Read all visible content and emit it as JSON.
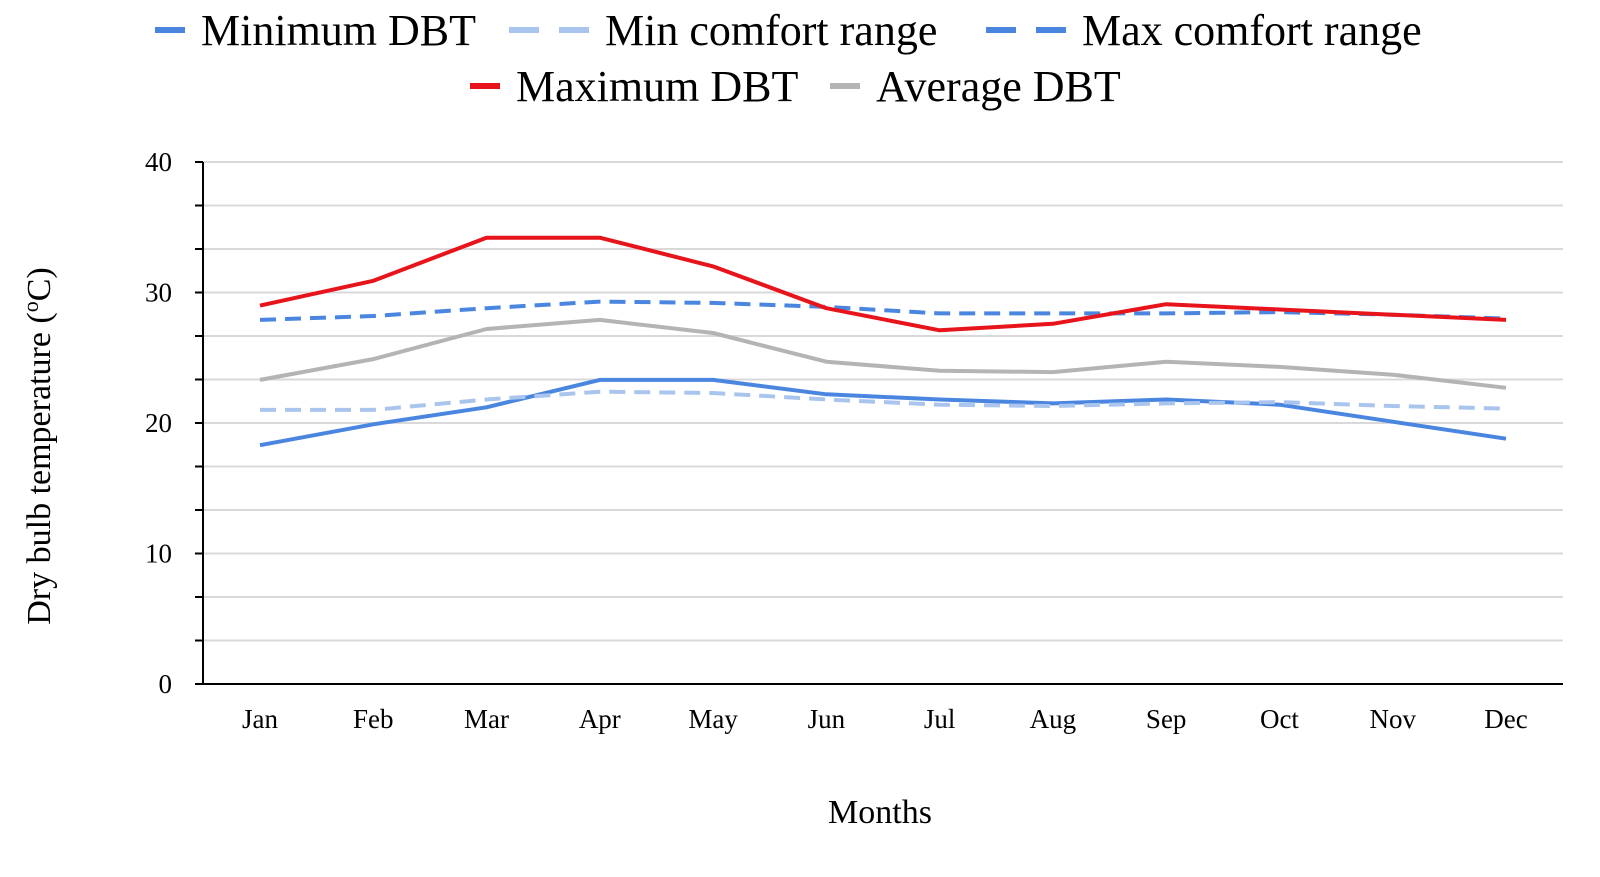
{
  "chart_data": {
    "type": "line",
    "title": "",
    "xlabel": "Months",
    "ylabel": "Dry bulb temperature (oC)",
    "ylim": [
      0,
      40
    ],
    "yticks": [
      "0",
      "10",
      "20",
      "30",
      "40"
    ],
    "grid": "horizontal",
    "legend_position": "top",
    "categories": [
      "Jan",
      "Feb",
      "Mar",
      "Apr",
      "May",
      "Jun",
      "Jul",
      "Aug",
      "Sep",
      "Oct",
      "Nov",
      "Dec"
    ],
    "series": [
      {
        "name": "Minimum DBT",
        "color": "#4a86e0",
        "dash": "solid",
        "values": [
          18.3,
          19.9,
          21.2,
          23.3,
          23.3,
          22.2,
          21.8,
          21.5,
          21.8,
          21.4,
          20.1,
          18.8
        ]
      },
      {
        "name": "Min comfort range",
        "color": "#a9c5ee",
        "dash": "dashed",
        "values": [
          21.0,
          21.0,
          21.8,
          22.4,
          22.3,
          21.8,
          21.4,
          21.3,
          21.5,
          21.6,
          21.3,
          21.1
        ]
      },
      {
        "name": "Max comfort range",
        "color": "#4a86e0",
        "dash": "dashed",
        "values": [
          27.9,
          28.2,
          28.8,
          29.3,
          29.2,
          28.9,
          28.4,
          28.4,
          28.4,
          28.5,
          28.3,
          28.0
        ]
      },
      {
        "name": "Maximum DBT",
        "color": "#e8141b",
        "dash": "solid",
        "values": [
          29.0,
          30.9,
          34.2,
          34.2,
          32.0,
          28.8,
          27.1,
          27.6,
          29.1,
          28.7,
          28.3,
          27.9
        ]
      },
      {
        "name": "Average DBT",
        "color": "#b4b4b4",
        "dash": "solid",
        "values": [
          23.3,
          24.9,
          27.2,
          27.9,
          26.9,
          24.7,
          24.0,
          23.9,
          24.7,
          24.3,
          23.7,
          22.7
        ]
      }
    ]
  }
}
